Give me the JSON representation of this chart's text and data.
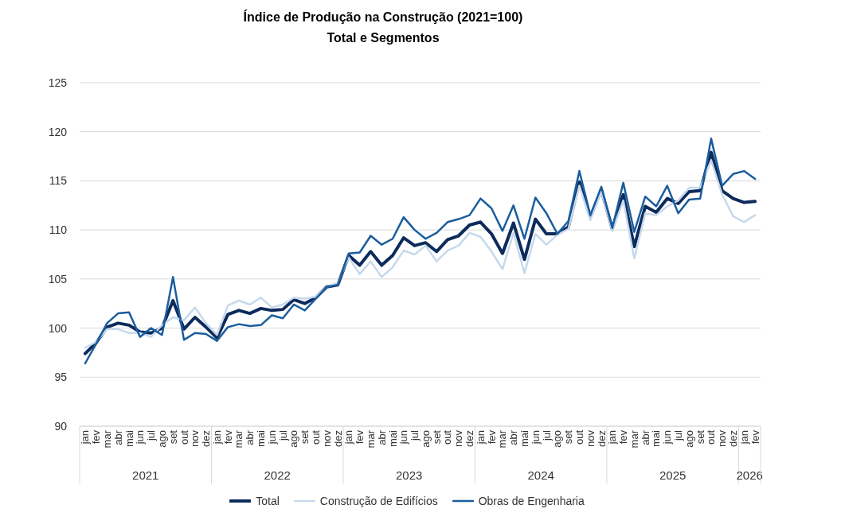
{
  "chart_data": {
    "type": "line",
    "title": "Índice de Produção na Construção (2021=100)",
    "subtitle": "Total e Segmentos",
    "categories": [
      "jan",
      "fev",
      "mar",
      "abr",
      "mai",
      "jun",
      "jul",
      "ago",
      "set",
      "out",
      "nov",
      "dez",
      "jan",
      "fev",
      "mar",
      "abr",
      "mai",
      "jun",
      "jul",
      "ago",
      "set",
      "out",
      "nov",
      "dez",
      "jan",
      "fev",
      "mar",
      "abr",
      "mai",
      "jun",
      "jul",
      "ago",
      "set",
      "out",
      "nov",
      "dez",
      "jan",
      "fev",
      "mar",
      "abr",
      "mai",
      "jun",
      "jul",
      "ago",
      "set",
      "out",
      "nov",
      "dez",
      "jan",
      "fev",
      "mar",
      "abr",
      "mai",
      "jun",
      "jul",
      "ago",
      "set",
      "out",
      "nov",
      "dez",
      "jan",
      "fev"
    ],
    "series": [
      {
        "name": "Total",
        "color": "#0d2b5c",
        "values": [
          97.4,
          98.5,
          100.1,
          100.5,
          100.3,
          99.6,
          99.5,
          100.0,
          102.8,
          99.9,
          101.1,
          100.1,
          99.0,
          101.4,
          101.8,
          101.5,
          102.0,
          101.8,
          101.9,
          102.9,
          102.5,
          103.1,
          104.2,
          104.4,
          107.4,
          106.4,
          107.8,
          106.4,
          107.4,
          109.2,
          108.4,
          108.7,
          107.8,
          109.0,
          109.4,
          110.5,
          110.8,
          109.6,
          107.6,
          110.7,
          107.0,
          111.1,
          109.6,
          109.6,
          110.3,
          114.9,
          111.3,
          114.1,
          110.1,
          113.6,
          108.3,
          112.4,
          111.8,
          113.2,
          112.7,
          113.9,
          114.0,
          117.9,
          114.0,
          113.2,
          112.8,
          112.9
        ]
      },
      {
        "name": "Construção de Edifícios",
        "color": "#c6d9ec",
        "values": [
          98.0,
          98.6,
          99.9,
          99.9,
          99.5,
          99.5,
          99.1,
          100.3,
          101.1,
          100.8,
          102.1,
          100.5,
          99.3,
          102.3,
          102.8,
          102.4,
          103.1,
          102.1,
          102.4,
          103.1,
          103.0,
          103.2,
          104.2,
          104.6,
          107.2,
          105.5,
          106.8,
          105.2,
          106.2,
          107.9,
          107.5,
          108.4,
          106.8,
          107.9,
          108.4,
          109.7,
          109.3,
          107.8,
          106.0,
          109.7,
          105.6,
          109.6,
          108.5,
          109.5,
          110.1,
          114.5,
          111.0,
          113.9,
          109.9,
          113.0,
          107.1,
          111.7,
          111.5,
          112.4,
          113.0,
          114.3,
          114.3,
          117.1,
          113.6,
          111.4,
          110.8,
          111.5
        ]
      },
      {
        "name": "Obras de Engenharia",
        "color": "#1b5d9e",
        "values": [
          96.4,
          98.4,
          100.5,
          101.5,
          101.6,
          99.1,
          100.0,
          99.3,
          105.2,
          98.8,
          99.5,
          99.4,
          98.7,
          100.1,
          100.4,
          100.2,
          100.3,
          101.3,
          101.0,
          102.4,
          101.8,
          103.0,
          104.2,
          104.4,
          107.6,
          107.7,
          109.4,
          108.5,
          109.1,
          111.3,
          110.0,
          109.1,
          109.7,
          110.8,
          111.1,
          111.5,
          113.2,
          112.2,
          109.9,
          112.5,
          109.1,
          113.3,
          111.7,
          109.6,
          110.9,
          116.0,
          111.5,
          114.4,
          110.2,
          114.8,
          109.8,
          113.4,
          112.4,
          114.5,
          111.7,
          113.1,
          113.2,
          119.3,
          114.5,
          115.7,
          116.0,
          115.2
        ]
      }
    ],
    "ylim": [
      90,
      125
    ],
    "yticks": [
      90,
      95,
      100,
      105,
      110,
      115,
      120,
      125
    ],
    "grid": "y",
    "legend": "bottom",
    "annotations": [
      "2021",
      "2022",
      "2023",
      "2024",
      "2025",
      "2026"
    ]
  }
}
